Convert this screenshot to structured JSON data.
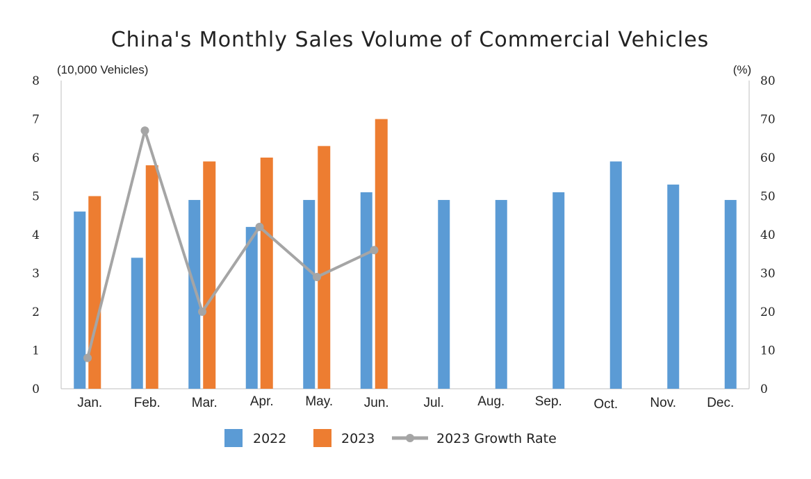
{
  "chart_data": {
    "type": "bar",
    "title": "China's Monthly Sales Volume of Commercial Vehicles",
    "ylabel_left": "(10,000 Vehicles)",
    "ylabel_right": "(%)",
    "categories": [
      "Jan.",
      "Feb.",
      "Mar.",
      "Apr.",
      "May.",
      "Jun.",
      "Jul.",
      "Aug.",
      "Sep.",
      "Oct.",
      "Nov.",
      "Dec."
    ],
    "ylim_left": [
      0,
      8
    ],
    "yticks_left": [
      "0",
      "1",
      "2",
      "3",
      "4",
      "5",
      "6",
      "7",
      "8"
    ],
    "ylim_right": [
      0,
      80
    ],
    "yticks_right": [
      "0",
      "10",
      "20",
      "30",
      "40",
      "50",
      "60",
      "70",
      "80"
    ],
    "series": [
      {
        "name": "2022",
        "kind": "bar",
        "color": "#5b9bd5",
        "values": [
          4.6,
          3.4,
          4.9,
          4.2,
          4.9,
          5.1,
          4.9,
          4.9,
          5.1,
          5.9,
          5.3,
          4.9
        ]
      },
      {
        "name": "2023",
        "kind": "bar",
        "color": "#ed7d31",
        "values": [
          5.0,
          5.8,
          5.9,
          6.0,
          6.3,
          7.0,
          null,
          null,
          null,
          null,
          null,
          null
        ]
      },
      {
        "name": "2023 Growth Rate",
        "kind": "line",
        "axis": "right",
        "color": "#a5a5a5",
        "values": [
          8,
          67,
          20,
          42,
          29,
          36,
          null,
          null,
          null,
          null,
          null,
          null
        ]
      }
    ],
    "legend_position": "bottom",
    "grid": false
  }
}
